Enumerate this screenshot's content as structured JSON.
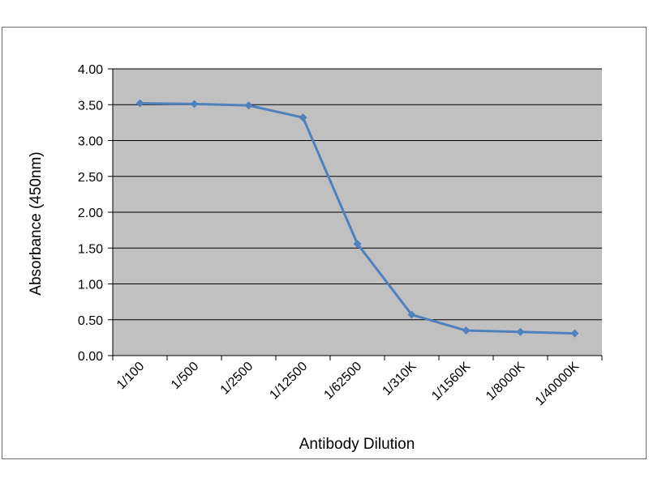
{
  "chart_data": {
    "type": "line",
    "title": "",
    "xlabel": "Antibody Dilution",
    "ylabel": "Absorbance (450nm)",
    "categories": [
      "1/100",
      "1/500",
      "1/2500",
      "1/12500",
      "1/62500",
      "1/310K",
      "1/1560K",
      "1/8000K",
      "1/40000K"
    ],
    "series": [
      {
        "values": [
          3.52,
          3.51,
          3.49,
          3.32,
          1.56,
          0.57,
          0.35,
          0.33,
          0.31
        ]
      }
    ],
    "ylim": [
      0,
      4
    ],
    "yticks": [
      "0.00",
      "0.50",
      "1.00",
      "1.50",
      "2.00",
      "2.50",
      "3.00",
      "3.50",
      "4.00"
    ],
    "grid": true,
    "legend": "none",
    "colors": {
      "plot_background": "#c0c0c0",
      "line": "#4f81bd",
      "gridline": "#000000"
    }
  }
}
